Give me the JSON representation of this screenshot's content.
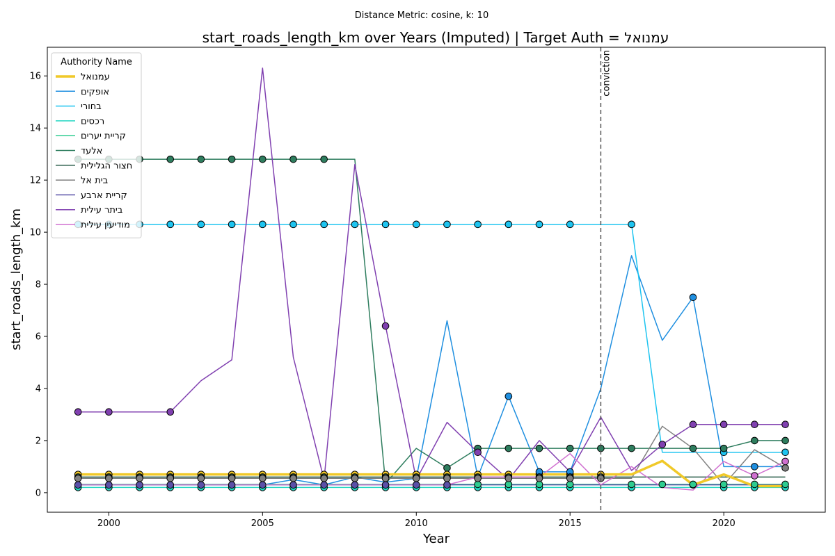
{
  "chart_data": {
    "type": "line",
    "suptitle": "Distance Metric: cosine, k: 10",
    "title": "start_roads_length_km over Years (Imputed) | Target Auth = עמנואל",
    "xlabel": "Year",
    "ylabel": "start_roads_length_km",
    "xlim": [
      1998,
      2023.3
    ],
    "ylim": [
      -0.75,
      17.1
    ],
    "xticks": [
      2000,
      2005,
      2010,
      2015,
      2020
    ],
    "yticks": [
      0,
      2,
      4,
      6,
      8,
      10,
      12,
      14,
      16
    ],
    "grid": false,
    "legend_title": "Authority Name",
    "legend_position": "top-left",
    "vline": {
      "x": 2016,
      "label": "conviction"
    },
    "x": [
      1999,
      2000,
      2001,
      2002,
      2003,
      2004,
      2005,
      2006,
      2007,
      2008,
      2009,
      2010,
      2011,
      2012,
      2013,
      2014,
      2015,
      2016,
      2017,
      2018,
      2019,
      2020,
      2021,
      2022
    ],
    "series": [
      {
        "name": "עמנואל",
        "color": "#f0c929",
        "width": 3.5,
        "is_target": true,
        "values": [
          0.7,
          0.7,
          0.7,
          0.7,
          0.7,
          0.7,
          0.7,
          0.7,
          0.7,
          0.7,
          0.7,
          0.7,
          0.7,
          0.7,
          0.7,
          0.7,
          0.7,
          0.7,
          0.7,
          1.22,
          0.3,
          0.7,
          0.25,
          0.25
        ],
        "markers": [
          0,
          1,
          2,
          3,
          4,
          5,
          6,
          7,
          8,
          9,
          10,
          11,
          12,
          13,
          14,
          15,
          16,
          17,
          20
        ]
      },
      {
        "name": "אופקים",
        "color": "#1f8fe0",
        "width": 1.5,
        "values": [
          0.3,
          0.3,
          0.3,
          0.3,
          0.3,
          0.3,
          0.3,
          0.5,
          0.3,
          0.6,
          0.4,
          0.55,
          6.6,
          0.6,
          3.7,
          0.8,
          0.8,
          4.0,
          9.1,
          5.85,
          7.5,
          1.0,
          1.0,
          1.0
        ],
        "markers": [
          14,
          15,
          16,
          20,
          22
        ]
      },
      {
        "name": "בחורי",
        "color": "#1ec4f0",
        "width": 1.5,
        "values": [
          10.3,
          10.3,
          10.3,
          10.3,
          10.3,
          10.3,
          10.3,
          10.3,
          10.3,
          10.3,
          10.3,
          10.3,
          10.3,
          10.3,
          10.3,
          10.3,
          10.3,
          10.3,
          10.3,
          1.55,
          1.55,
          1.55,
          1.55,
          1.55
        ],
        "markers": [
          0,
          1,
          2,
          3,
          4,
          5,
          6,
          7,
          8,
          9,
          10,
          11,
          12,
          13,
          14,
          15,
          16,
          18,
          21,
          23
        ]
      },
      {
        "name": "רכסים",
        "color": "#22d6c2",
        "width": 1.5,
        "values": [
          0.2,
          0.2,
          0.2,
          0.2,
          0.2,
          0.2,
          0.2,
          0.2,
          0.2,
          0.2,
          0.2,
          0.2,
          0.2,
          0.2,
          0.2,
          0.2,
          0.2,
          0.2,
          0.2,
          0.2,
          0.2,
          0.2,
          0.2,
          0.2
        ],
        "markers": [
          0,
          1,
          2,
          3,
          4,
          5,
          6,
          7,
          8,
          9,
          10,
          11,
          12,
          13,
          14,
          15,
          16,
          18,
          21,
          22,
          23
        ]
      },
      {
        "name": "קריית יערים",
        "color": "#2ecc90",
        "width": 1.5,
        "values": [
          0.32,
          0.32,
          0.32,
          0.32,
          0.32,
          0.32,
          0.32,
          0.32,
          0.32,
          0.32,
          0.32,
          0.32,
          0.32,
          0.32,
          0.32,
          0.32,
          0.32,
          0.32,
          0.32,
          0.32,
          0.32,
          0.32,
          0.32,
          0.32
        ],
        "markers": [
          13,
          14,
          15,
          16,
          18,
          19,
          20,
          21,
          22,
          23
        ]
      },
      {
        "name": "אלעד",
        "color": "#2e7d5e",
        "width": 1.5,
        "values": [
          12.8,
          12.8,
          12.8,
          12.8,
          12.8,
          12.8,
          12.8,
          12.8,
          12.8,
          12.8,
          0.35,
          1.7,
          0.95,
          1.7,
          1.7,
          1.7,
          1.7,
          1.7,
          1.7,
          1.7,
          1.7,
          1.7,
          2.0,
          2.0
        ],
        "markers": [
          0,
          1,
          2,
          3,
          4,
          5,
          6,
          7,
          8,
          12,
          13,
          14,
          15,
          16,
          17,
          18,
          20,
          21,
          22,
          23
        ]
      },
      {
        "name": "חצור הגלילית",
        "color": "#2a5e4a",
        "width": 1.5,
        "values": [
          0.6,
          0.6,
          0.6,
          0.6,
          0.6,
          0.6,
          0.6,
          0.6,
          0.6,
          0.6,
          0.6,
          0.6,
          0.6,
          0.6,
          0.6,
          0.6,
          0.6,
          0.6,
          0.6,
          0.6,
          0.6,
          0.6,
          0.6,
          0.6
        ],
        "markers": [
          0,
          1,
          2,
          3,
          4,
          5,
          6,
          7,
          8,
          9,
          10,
          11,
          12,
          13,
          14,
          15,
          16,
          17
        ]
      },
      {
        "name": "בית אל",
        "color": "#808080",
        "width": 1.5,
        "values": [
          0.55,
          0.55,
          0.55,
          0.55,
          0.55,
          0.55,
          0.55,
          0.55,
          0.55,
          0.55,
          0.55,
          0.55,
          0.55,
          0.55,
          0.55,
          0.55,
          0.55,
          0.55,
          0.55,
          2.55,
          1.7,
          0.3,
          1.65,
          0.95
        ],
        "markers": [
          0,
          1,
          2,
          3,
          4,
          5,
          6,
          7,
          8,
          9,
          10,
          11,
          12,
          13,
          14,
          15,
          16,
          17,
          23
        ]
      },
      {
        "name": "קריית ארבע",
        "color": "#5a50a8",
        "width": 1.5,
        "values": [
          0.3,
          0.3,
          0.3,
          0.3,
          0.3,
          0.3,
          0.3,
          0.3,
          0.3,
          0.3,
          0.3,
          0.3,
          0.3,
          0.3,
          0.3,
          0.3,
          0.3,
          0.3,
          0.3,
          0.3,
          0.3,
          0.3,
          0.3,
          0.3
        ],
        "markers": [
          0,
          1,
          2,
          3,
          4,
          5,
          6,
          7,
          8,
          9,
          10,
          11,
          12
        ]
      },
      {
        "name": "ביתר עילית",
        "color": "#8040b0",
        "width": 1.5,
        "values": [
          3.1,
          3.1,
          3.1,
          3.1,
          4.3,
          5.1,
          16.3,
          5.2,
          0.5,
          12.6,
          6.4,
          0.5,
          2.7,
          1.55,
          0.5,
          2.0,
          0.8,
          2.9,
          0.85,
          1.85,
          2.62,
          2.62,
          2.62,
          2.62
        ],
        "markers": [
          0,
          1,
          3,
          10,
          13,
          19,
          20,
          21,
          22,
          23
        ]
      },
      {
        "name": "מודיעין עילית",
        "color": "#d070d0",
        "width": 1.5,
        "values": [
          0.3,
          0.3,
          0.3,
          0.3,
          0.3,
          0.3,
          0.3,
          0.3,
          0.3,
          0.3,
          0.3,
          0.3,
          0.3,
          0.6,
          0.6,
          0.6,
          1.5,
          0.3,
          1.0,
          0.2,
          0.1,
          1.2,
          0.65,
          1.2
        ],
        "markers": [
          22,
          23
        ]
      }
    ]
  }
}
